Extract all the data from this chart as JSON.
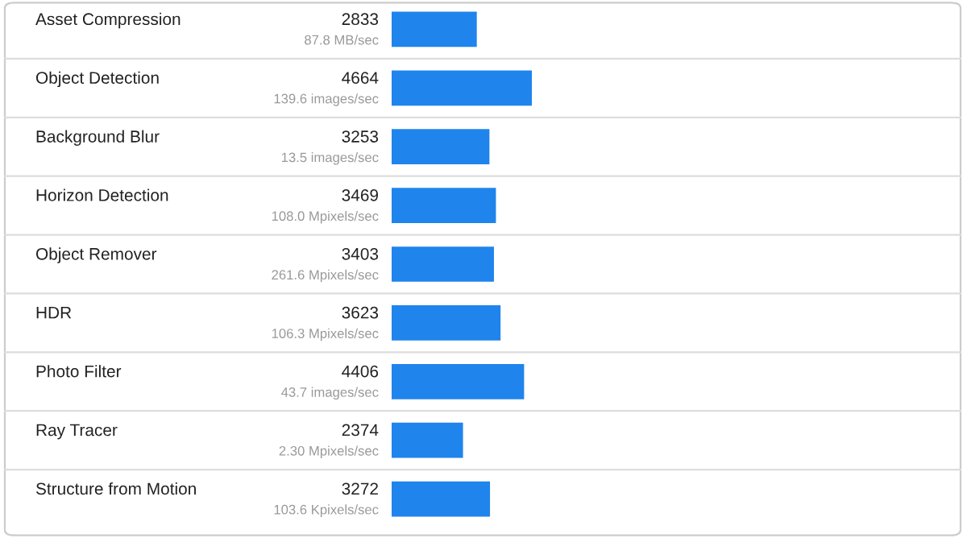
{
  "chart_data": {
    "type": "bar",
    "orientation": "horizontal",
    "data_labels": true,
    "color": "#1f84ec",
    "categories": [
      "Asset Compression",
      "Object Detection",
      "Background Blur",
      "Horizon Detection",
      "Object Remover",
      "HDR",
      "Photo Filter",
      "Ray Tracer",
      "Structure from Motion"
    ],
    "values": [
      2833,
      4664,
      3253,
      3469,
      3403,
      3623,
      4406,
      2374,
      3272
    ],
    "annotations": [
      "87.8 MB/sec",
      "139.6 images/sec",
      "13.5 images/sec",
      "108.0 Mpixels/sec",
      "261.6 Mpixels/sec",
      "106.3 Mpixels/sec",
      "43.7 images/sec",
      "2.30 Mpixels/sec",
      "103.6 Kpixels/sec"
    ]
  }
}
